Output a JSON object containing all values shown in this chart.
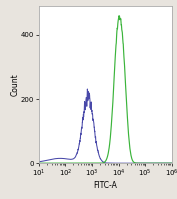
{
  "title": "",
  "xlabel": "FITC-A",
  "ylabel": "Count",
  "xlim_log": [
    10.0,
    1000000.0
  ],
  "ylim": [
    0,
    490
  ],
  "yticks": [
    0,
    200,
    400
  ],
  "background_color": "#e8e4de",
  "plot_bg_color": "#ffffff",
  "blue_color": "#3535a0",
  "green_color": "#30b030",
  "blue_peak_log": 2.85,
  "blue_peak_height": 210,
  "blue_sigma_log": 0.2,
  "green_peak_log": 4.0,
  "green_peak_height": 430,
  "green_sigma_log": 0.17,
  "figsize": [
    1.77,
    1.99
  ],
  "dpi": 100
}
